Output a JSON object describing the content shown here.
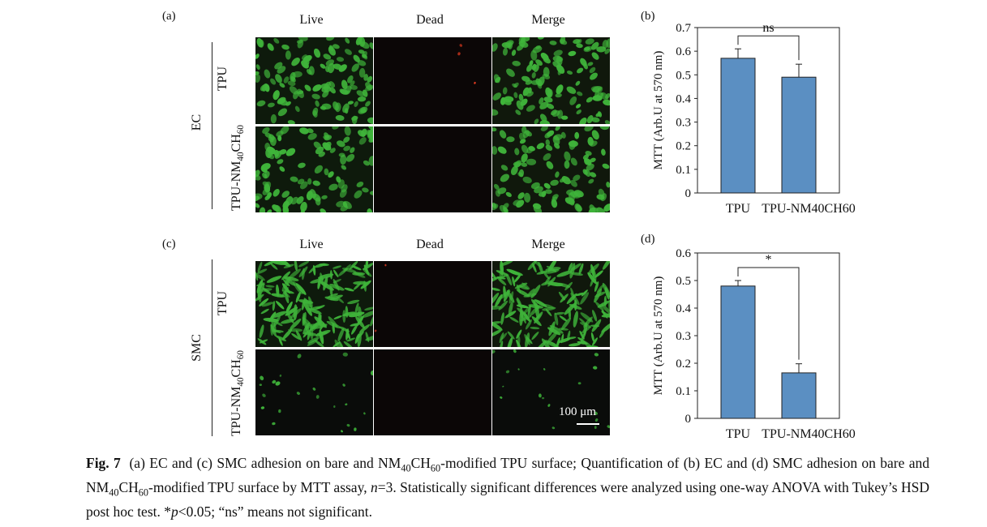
{
  "figure": {
    "panel_a": "(a)",
    "panel_b": "(b)",
    "panel_c": "(c)",
    "panel_d": "(d)",
    "col_live": "Live",
    "col_dead": "Dead",
    "col_merge": "Merge",
    "group_ec": "EC",
    "group_smc": "SMC",
    "row_tpu": "TPU",
    "row_mod_prefix": "TPU-NM",
    "row_mod_sub1": "40",
    "row_mod_mid": "CH",
    "row_mod_sub2": "60",
    "scale_bar": "100 μm",
    "colors": {
      "live_cell": "#3fb43a",
      "dead_cell": "#e03a20",
      "bar": "#5b8fc2"
    }
  },
  "chart_data": [
    {
      "type": "bar",
      "panel": "(b)",
      "categories": [
        "TPU",
        "TPU-NM40CH60"
      ],
      "values": [
        0.57,
        0.49
      ],
      "errors": [
        0.04,
        0.055
      ],
      "ylabel": "MTT (Arb.U at 570 nm)",
      "ylim": [
        0,
        0.7
      ],
      "yticks": [
        "0",
        "0.1",
        "0.2",
        "0.3",
        "0.4",
        "0.5",
        "0.6",
        "0.7"
      ],
      "significance": "ns"
    },
    {
      "type": "bar",
      "panel": "(d)",
      "categories": [
        "TPU",
        "TPU-NM40CH60"
      ],
      "values": [
        0.48,
        0.165
      ],
      "errors": [
        0.02,
        0.033
      ],
      "ylabel": "MTT (Arb.U at 570 nm)",
      "ylim": [
        0,
        0.6
      ],
      "yticks": [
        "0",
        "0.1",
        "0.2",
        "0.3",
        "0.4",
        "0.5",
        "0.6"
      ],
      "significance": "*"
    }
  ],
  "caption": {
    "fig_label": "Fig. 7",
    "t1": "(a) EC and (c) SMC adhesion on bare and NM",
    "s1": "40",
    "t2": "CH",
    "s2": "60",
    "t3": "-modified TPU surface; Quantification of (b) EC and (d) SMC adhesion on bare and NM",
    "s3": "40",
    "t4": "CH",
    "s4": "60",
    "t5": "-modified TPU surface by MTT assay, ",
    "n_italic": "n",
    "t6": "=3. Statistically significant differences were analyzed using one-way ANOVA with Tukey’s HSD post hoc test. *",
    "p_italic": "p",
    "t7": "<0.05; “ns” means not significant."
  }
}
